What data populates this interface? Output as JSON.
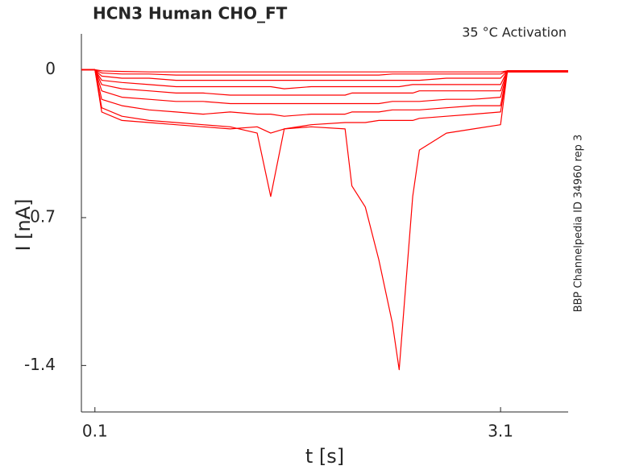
{
  "chart_data": {
    "type": "line",
    "title": "HCN3  Human  CHO_FT",
    "annotation": "35 °C  Activation",
    "side_note": "BBP Channelpedia ID 34960 rep 3",
    "x_label": "t [s]",
    "y_label": "I [nA]",
    "x": [
      0,
      0.1,
      0.15,
      0.3,
      0.5,
      0.7,
      0.9,
      1.1,
      1.3,
      1.4,
      1.5,
      1.7,
      1.95,
      2.0,
      2.1,
      2.2,
      2.3,
      2.35,
      2.45,
      2.5,
      2.7,
      2.9,
      3.1,
      3.15,
      3.6
    ],
    "series": [
      {
        "color": "#ff0000",
        "values": [
          0,
          0,
          -0.2,
          -0.24,
          -0.25,
          -0.26,
          -0.27,
          -0.28,
          -0.27,
          -0.3,
          -0.28,
          -0.27,
          -0.28,
          -0.55,
          -0.65,
          -0.9,
          -1.2,
          -1.42,
          -0.6,
          -0.38,
          -0.3,
          -0.28,
          -0.26,
          -0.01,
          -0.01
        ]
      },
      {
        "color": "#ff0000",
        "values": [
          0,
          0,
          -0.18,
          -0.22,
          -0.24,
          -0.25,
          -0.26,
          -0.27,
          -0.3,
          -0.6,
          -0.28,
          -0.26,
          -0.25,
          -0.25,
          -0.25,
          -0.24,
          -0.24,
          -0.24,
          -0.24,
          -0.23,
          -0.22,
          -0.21,
          -0.2,
          -0.01,
          -0.01
        ]
      },
      {
        "color": "#ff0000",
        "values": [
          0,
          0,
          -0.14,
          -0.17,
          -0.19,
          -0.2,
          -0.21,
          -0.2,
          -0.21,
          -0.21,
          -0.22,
          -0.21,
          -0.21,
          -0.2,
          -0.2,
          -0.2,
          -0.19,
          -0.19,
          -0.19,
          -0.19,
          -0.18,
          -0.17,
          -0.17,
          -0.01,
          -0.01
        ]
      },
      {
        "color": "#ff0000",
        "values": [
          0,
          0,
          -0.1,
          -0.13,
          -0.14,
          -0.15,
          -0.15,
          -0.16,
          -0.16,
          -0.16,
          -0.16,
          -0.16,
          -0.16,
          -0.16,
          -0.16,
          -0.16,
          -0.15,
          -0.15,
          -0.15,
          -0.15,
          -0.14,
          -0.14,
          -0.13,
          -0.01,
          -0.01
        ]
      },
      {
        "color": "#ff0000",
        "values": [
          0,
          0,
          -0.07,
          -0.09,
          -0.1,
          -0.11,
          -0.11,
          -0.12,
          -0.12,
          -0.12,
          -0.12,
          -0.12,
          -0.12,
          -0.11,
          -0.11,
          -0.11,
          -0.11,
          -0.11,
          -0.11,
          -0.1,
          -0.1,
          -0.1,
          -0.1,
          -0.005,
          -0.005
        ]
      },
      {
        "color": "#ff0000",
        "values": [
          0,
          0,
          -0.05,
          -0.06,
          -0.07,
          -0.08,
          -0.08,
          -0.08,
          -0.08,
          -0.08,
          -0.09,
          -0.08,
          -0.08,
          -0.08,
          -0.08,
          -0.08,
          -0.08,
          -0.08,
          -0.07,
          -0.07,
          -0.07,
          -0.07,
          -0.07,
          -0.005,
          -0.005
        ]
      },
      {
        "color": "#ff0000",
        "values": [
          0,
          0,
          -0.03,
          -0.04,
          -0.04,
          -0.05,
          -0.05,
          -0.05,
          -0.05,
          -0.05,
          -0.05,
          -0.05,
          -0.05,
          -0.05,
          -0.05,
          -0.05,
          -0.05,
          -0.05,
          -0.05,
          -0.05,
          -0.04,
          -0.04,
          -0.04,
          -0.005,
          -0.005
        ]
      },
      {
        "color": "#ff0000",
        "values": [
          0,
          0,
          -0.015,
          -0.02,
          -0.02,
          -0.025,
          -0.025,
          -0.025,
          -0.025,
          -0.025,
          -0.025,
          -0.025,
          -0.025,
          -0.025,
          -0.025,
          -0.025,
          -0.02,
          -0.02,
          -0.02,
          -0.02,
          -0.02,
          -0.02,
          -0.02,
          -0.005,
          -0.005
        ]
      },
      {
        "color": "#ff0000",
        "values": [
          0,
          0,
          -0.005,
          -0.008,
          -0.01,
          -0.01,
          -0.01,
          -0.01,
          -0.01,
          -0.01,
          -0.01,
          -0.01,
          -0.01,
          -0.01,
          -0.01,
          -0.01,
          -0.01,
          -0.01,
          -0.01,
          -0.01,
          -0.01,
          -0.01,
          -0.01,
          -0.005,
          -0.005
        ]
      }
    ],
    "xlim": [
      0,
      3.6
    ],
    "ylim": [
      -1.62,
      0.17
    ],
    "xticks": [
      0.1,
      3.1
    ],
    "yticks": [
      0,
      -0.7,
      -1.4
    ]
  }
}
